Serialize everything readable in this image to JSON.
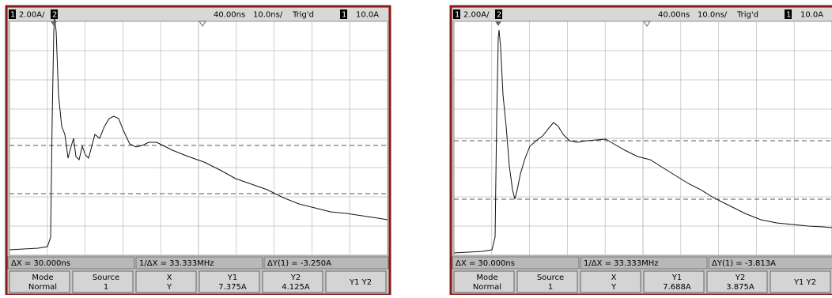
{
  "screens": [
    {
      "top": {
        "ch1": "1",
        "scale": "2.00A/",
        "ch2": "2",
        "delay": "40.00ns",
        "timebase": "10.0ns/",
        "status": "Trig'd",
        "trig_source": "1",
        "trig_level": "10.0A"
      },
      "measurements": [
        "ΔX = 30.000ns",
        "1/ΔX = 33.333MHz",
        "ΔY(1) = -3.250A"
      ],
      "softkeys": [
        [
          "Mode",
          "Normal"
        ],
        [
          "Source",
          "1"
        ],
        [
          "X",
          "Y"
        ],
        [
          "Y1",
          "7.375A"
        ],
        [
          "Y2",
          "4.125A"
        ],
        [
          "Y1 Y2"
        ]
      ]
    },
    {
      "top": {
        "ch1": "1",
        "scale": "2.00A/",
        "ch2": "2",
        "delay": "40.00ns",
        "timebase": "10.0ns/",
        "status": "Trig'd",
        "trig_source": "1",
        "trig_level": "10.0A"
      },
      "measurements": [
        "ΔX = 30.000ns",
        "1/ΔX = 33.333MHz",
        "ΔY(1) = -3.813A"
      ],
      "softkeys": [
        [
          "Mode",
          "Normal"
        ],
        [
          "Source",
          "1"
        ],
        [
          "X",
          "Y"
        ],
        [
          "Y1",
          "7.688A"
        ],
        [
          "Y2",
          "3.875A"
        ],
        [
          "Y1 Y2"
        ]
      ]
    }
  ]
}
